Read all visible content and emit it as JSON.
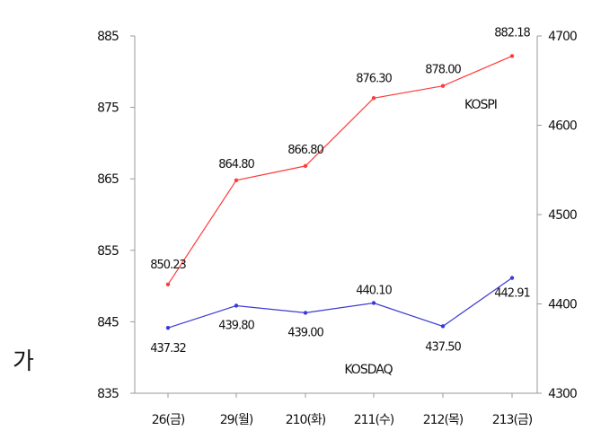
{
  "side_label": "가",
  "chart_data": {
    "type": "line",
    "categories": [
      "26(금)",
      "29(월)",
      "210(화)",
      "211(수)",
      "212(목)",
      "213(금)"
    ],
    "y_left": {
      "ticks": [
        "885",
        "875",
        "865",
        "855",
        "845",
        "835"
      ],
      "range": [
        835,
        885
      ]
    },
    "y_right": {
      "ticks": [
        "4700",
        "4600",
        "4500",
        "4400",
        "4300"
      ],
      "range": [
        4300,
        4700
      ]
    },
    "grid": false,
    "series": [
      {
        "name": "KOSPI",
        "axis": "left",
        "values": [
          850.23,
          864.8,
          866.8,
          876.3,
          878.0,
          882.18
        ],
        "labels": [
          "850.23",
          "864.80",
          "866.80",
          "876.30",
          "878.00",
          "882.18"
        ],
        "color": "#ff3b3b"
      },
      {
        "name": "KOSDAQ",
        "axis": "right",
        "values": [
          437.32,
          439.8,
          439.0,
          440.1,
          437.5,
          442.91
        ],
        "labels": [
          "437.32",
          "439.80",
          "439.00",
          "440.10",
          "437.50",
          "442.91"
        ],
        "color": "#3a3ad6"
      }
    ],
    "series_labels": [
      "KOSPI",
      "KOSDAQ"
    ]
  }
}
